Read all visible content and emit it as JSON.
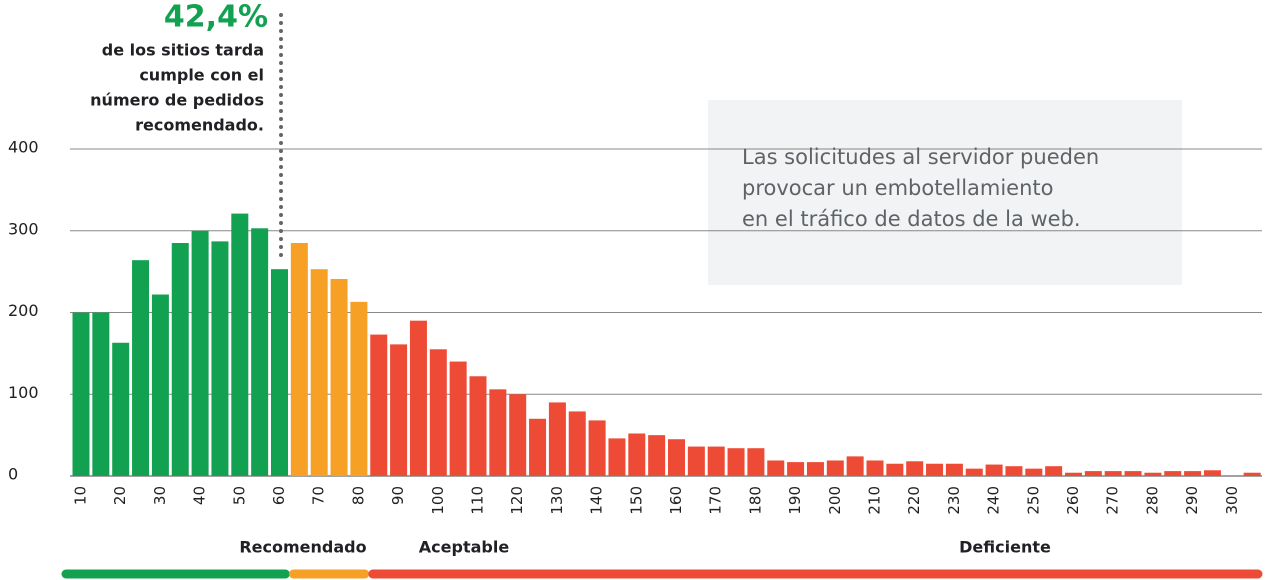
{
  "chart_data": {
    "type": "bar",
    "categories": [
      10,
      null,
      20,
      null,
      30,
      null,
      40,
      null,
      50,
      null,
      60,
      null,
      70,
      null,
      80,
      null,
      90,
      null,
      100,
      null,
      110,
      null,
      120,
      null,
      130,
      null,
      140,
      null,
      150,
      null,
      160,
      null,
      170,
      null,
      180,
      null,
      190,
      null,
      200,
      null,
      210,
      null,
      220,
      null,
      230,
      null,
      240,
      null,
      250,
      null,
      260,
      null,
      270,
      null,
      280,
      null,
      290,
      null,
      300,
      null
    ],
    "values": [
      200,
      200,
      163,
      264,
      222,
      285,
      300,
      287,
      321,
      303,
      253,
      285,
      253,
      241,
      213,
      173,
      161,
      190,
      155,
      140,
      122,
      106,
      100,
      70,
      90,
      79,
      68,
      46,
      52,
      50,
      45,
      36,
      36,
      34,
      34,
      19,
      17,
      17,
      19,
      24,
      19,
      15,
      18,
      15,
      15,
      9,
      14,
      12,
      9,
      12,
      4,
      6,
      6,
      6,
      4,
      6,
      6,
      7,
      0,
      4
    ],
    "groups": [
      {
        "label": "Recomendado",
        "color": "#12a150",
        "bars": 11
      },
      {
        "label": "Aceptable",
        "color": "#f6a126",
        "bars": 4
      },
      {
        "label": "Deficiente",
        "color": "#ee4b36",
        "bars": 45
      }
    ],
    "ylim": [
      0,
      400
    ],
    "yticks": [
      0,
      100,
      200,
      300,
      400
    ],
    "grid": true,
    "annotation": {
      "value": "42,4%",
      "lines": [
        "de los sitios tarda",
        "cumple con el",
        "número de pedidos",
        "recomendado."
      ]
    },
    "callout": [
      "Las solicitudes al servidor pueden",
      "provocar un embotellamiento",
      "en el tráfico de datos de la web."
    ]
  }
}
